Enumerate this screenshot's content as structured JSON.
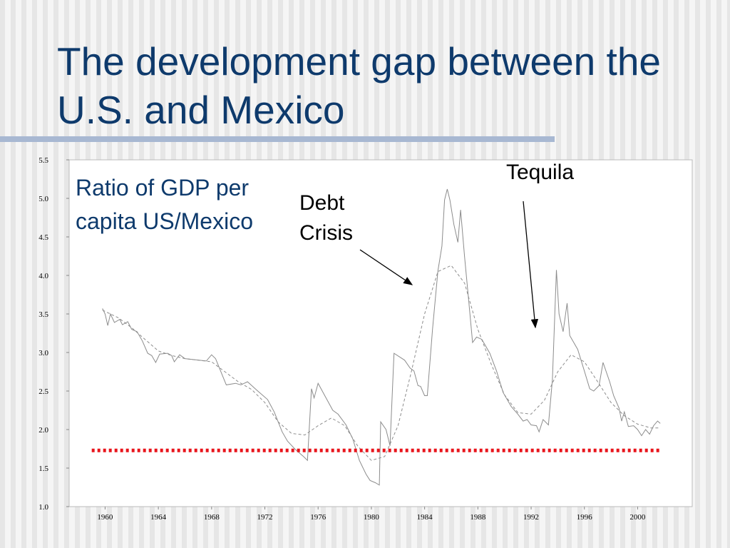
{
  "chart_data": {
    "type": "line",
    "title": "The development gap between the U.S. and Mexico",
    "annotations": [
      "Ratio of GDP per capita US/Mexico",
      "Debt Crisis",
      "Tequila"
    ],
    "xlim": [
      1957.3,
      2004.1
    ],
    "ylim": [
      1,
      5.5
    ],
    "xticks": [
      1960,
      1964,
      1968,
      1972,
      1976,
      1980,
      1984,
      1988,
      1992,
      1996,
      2000
    ],
    "yticks": [
      {
        "value": 1,
        "label": "1.0"
      },
      1.5,
      {
        "value": 2,
        "label": "2.0"
      },
      2.5,
      {
        "value": 3,
        "label": "3.0"
      },
      3.5,
      {
        "value": 4,
        "label": "4.0"
      },
      4.5,
      {
        "value": 5,
        "label": "5.0"
      },
      5.5
    ],
    "grid": false,
    "series": [
      {
        "color": "#8c8c8c",
        "style": "solid",
        "x": [
          1959.8,
          1960.0,
          1960.2,
          1960.4,
          1960.7,
          1961.1,
          1961.3,
          1961.7,
          1962.0,
          1962.4,
          1962.8,
          1963.2,
          1963.5,
          1963.8,
          1964.1,
          1964.7,
          1965.0,
          1965.2,
          1965.6,
          1966.0,
          1967.6,
          1968.0,
          1968.3,
          1969.1,
          1969.8,
          1970.2,
          1970.7,
          1971.4,
          1972.2,
          1972.7,
          1973.3,
          1973.7,
          1974.3,
          1974.9,
          1975.2,
          1975.5,
          1975.7,
          1976.0,
          1976.5,
          1977.1,
          1977.5,
          1978.1,
          1978.6,
          1979.1,
          1979.6,
          1979.9,
          1980.3,
          1980.6,
          1980.7,
          1981.1,
          1981.4,
          1981.7,
          1982.5,
          1982.9,
          1983.2,
          1983.5,
          1983.7,
          1984.0,
          1984.2,
          1984.6,
          1985.0,
          1985.3,
          1985.5,
          1985.7,
          1985.9,
          1986.2,
          1986.5,
          1986.7,
          1987.0,
          1987.3,
          1987.6,
          1987.9,
          1988.3,
          1988.9,
          1989.4,
          1989.9,
          1990.5,
          1991.0,
          1991.4,
          1991.7,
          1992.0,
          1992.4,
          1992.6,
          1992.9,
          1993.3,
          1993.6,
          1993.9,
          1994.1,
          1994.4,
          1994.7,
          1994.9,
          1995.5,
          1996.0,
          1996.4,
          1996.7,
          1997.1,
          1997.4,
          1997.9,
          1998.2,
          1998.6,
          1998.8,
          1999.0,
          1999.3,
          1999.7,
          2000.0,
          2000.3,
          2000.6,
          2000.9,
          2001.2,
          2001.5,
          2001.7
        ],
        "values": [
          3.57,
          3.5,
          3.35,
          3.5,
          3.39,
          3.43,
          3.36,
          3.4,
          3.3,
          3.27,
          3.15,
          2.99,
          2.96,
          2.87,
          2.98,
          2.99,
          2.96,
          2.88,
          2.97,
          2.92,
          2.89,
          2.97,
          2.92,
          2.58,
          2.6,
          2.58,
          2.62,
          2.51,
          2.39,
          2.23,
          1.97,
          1.85,
          1.74,
          1.65,
          1.6,
          2.53,
          2.41,
          2.6,
          2.44,
          2.25,
          2.2,
          2.06,
          1.88,
          1.6,
          1.42,
          1.34,
          1.31,
          1.28,
          2.1,
          2.0,
          1.79,
          2.99,
          2.9,
          2.8,
          2.76,
          2.57,
          2.56,
          2.44,
          2.44,
          3.31,
          4.06,
          4.38,
          4.98,
          5.12,
          4.98,
          4.66,
          4.43,
          4.85,
          4.24,
          3.69,
          3.13,
          3.2,
          3.17,
          2.99,
          2.76,
          2.48,
          2.3,
          2.2,
          2.11,
          2.13,
          2.06,
          2.05,
          1.97,
          2.13,
          2.06,
          2.65,
          4.07,
          3.5,
          3.27,
          3.64,
          3.22,
          3.04,
          2.76,
          2.53,
          2.5,
          2.57,
          2.87,
          2.62,
          2.44,
          2.28,
          2.11,
          2.23,
          2.04,
          2.05,
          2.0,
          1.92,
          2.0,
          1.94,
          2.05,
          2.11,
          2.08
        ]
      },
      {
        "color": "#8c8c8c",
        "style": "dashed",
        "x": [
          1959.8,
          1961,
          1962,
          1963,
          1964,
          1965,
          1966,
          1967,
          1968,
          1969,
          1970,
          1971,
          1972,
          1973,
          1974,
          1975,
          1976,
          1977,
          1978,
          1979,
          1980,
          1981,
          1982,
          1983,
          1984,
          1985,
          1986,
          1987,
          1988,
          1989,
          1990,
          1991,
          1992,
          1993,
          1994,
          1995,
          1996,
          1997,
          1998,
          1999,
          2000,
          2001,
          2001.7
        ],
        "values": [
          3.55,
          3.45,
          3.32,
          3.17,
          3.02,
          2.96,
          2.92,
          2.9,
          2.88,
          2.75,
          2.62,
          2.52,
          2.35,
          2.1,
          1.95,
          1.93,
          2.05,
          2.15,
          2.05,
          1.78,
          1.6,
          1.65,
          2.05,
          2.75,
          3.5,
          4.05,
          4.13,
          3.9,
          3.3,
          2.85,
          2.45,
          2.22,
          2.2,
          2.38,
          2.75,
          2.97,
          2.88,
          2.62,
          2.35,
          2.18,
          2.07,
          2.02,
          2.02
        ]
      },
      {
        "color": "#e8141b",
        "style": "dotted",
        "x": [
          1959.0,
          2001.7
        ],
        "values": [
          1.73,
          1.73
        ]
      }
    ]
  }
}
